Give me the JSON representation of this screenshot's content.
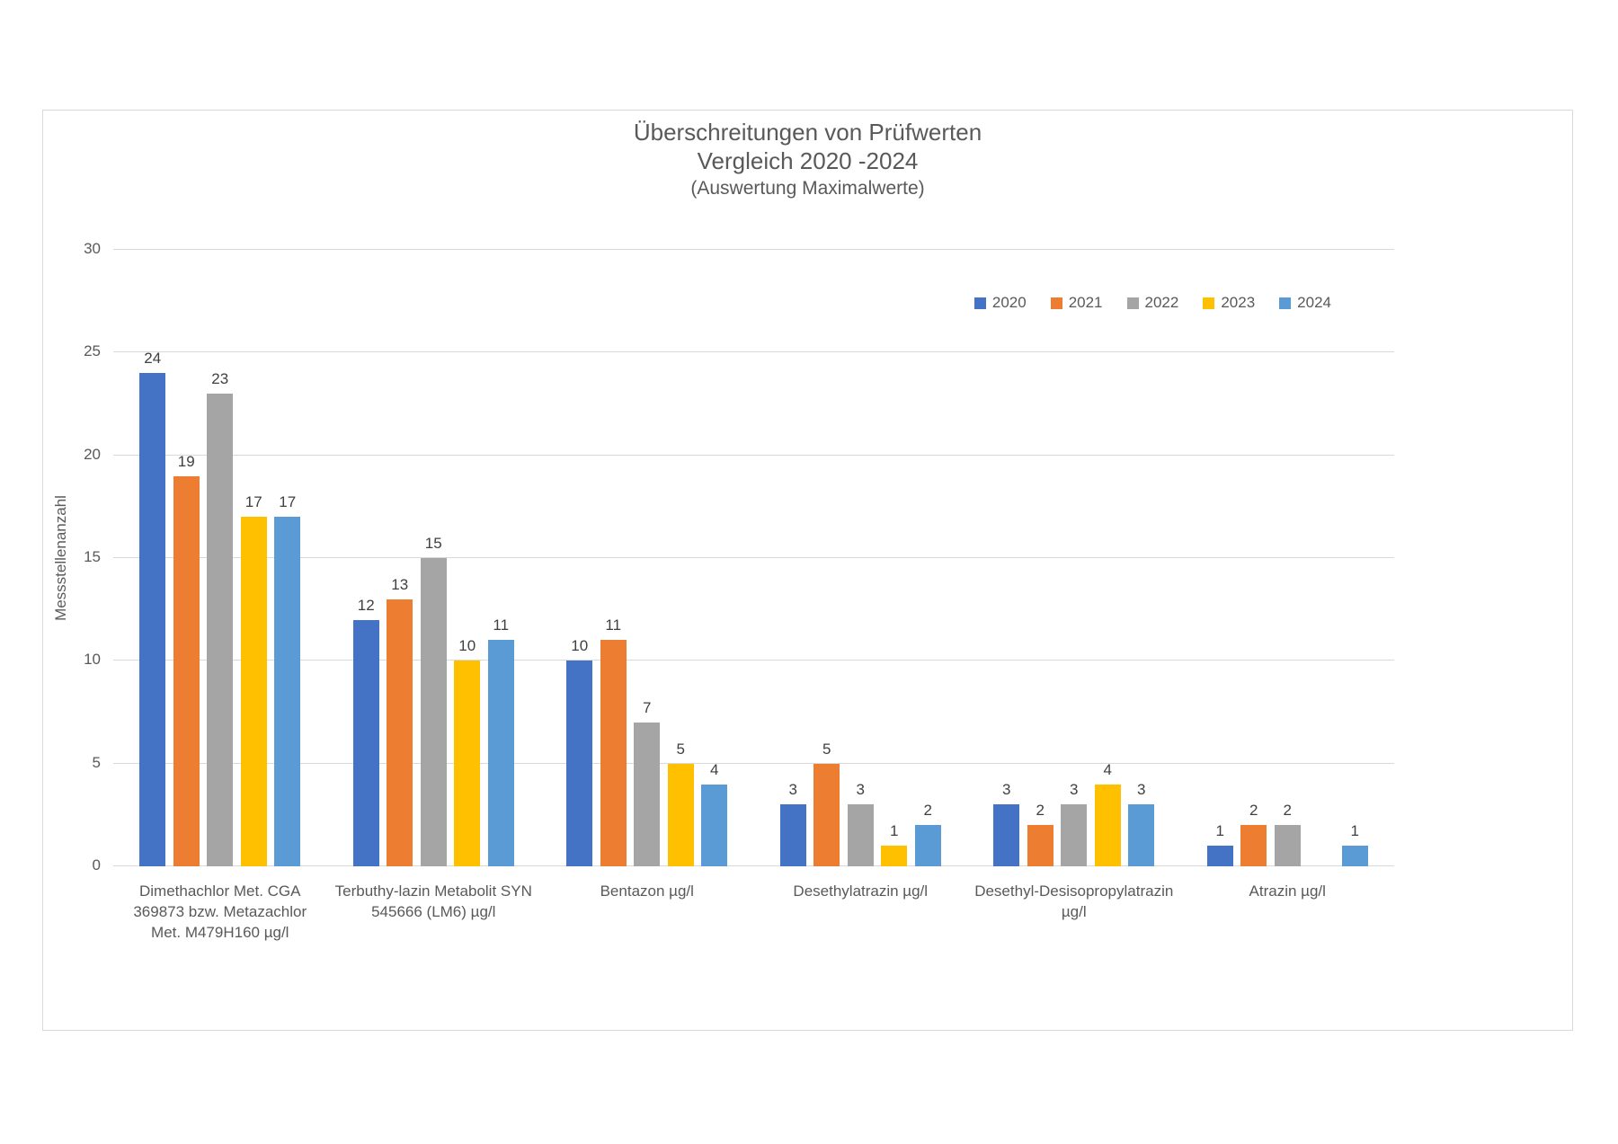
{
  "title": {
    "line1": "Überschreitungen von Prüfwerten",
    "line2": "Vergleich 2020 -2024",
    "line3": "(Auswertung Maximalwerte)"
  },
  "chart_data": {
    "type": "bar",
    "title": "Überschreitungen von Prüfwerten Vergleich 2020 -2024 (Auswertung Maximalwerte)",
    "xlabel": "",
    "ylabel": "Messstellenanzahl",
    "ylim": [
      0,
      30
    ],
    "yticks": [
      0,
      5,
      10,
      15,
      20,
      25,
      30
    ],
    "grid": true,
    "data_labels": true,
    "legend_position": "top-right",
    "categories": [
      "Dimethachlor Met. CGA 369873 bzw. Metazachlor Met. M479H160 µg/l",
      "Terbuthy-lazin Metabolit SYN 545666 (LM6) µg/l",
      "Bentazon µg/l",
      "Desethylatrazin µg/l",
      "Desethyl-Desisopropylatrazin µg/l",
      "Atrazin µg/l"
    ],
    "series": [
      {
        "name": "2020",
        "color": "#4472C4",
        "values": [
          24,
          12,
          10,
          3,
          3,
          1
        ]
      },
      {
        "name": "2021",
        "color": "#ED7D31",
        "values": [
          19,
          13,
          11,
          5,
          2,
          2
        ]
      },
      {
        "name": "2022",
        "color": "#A5A5A5",
        "values": [
          23,
          15,
          7,
          3,
          3,
          2
        ]
      },
      {
        "name": "2023",
        "color": "#FFC000",
        "values": [
          17,
          10,
          5,
          1,
          4,
          0
        ]
      },
      {
        "name": "2024",
        "color": "#5B9BD5",
        "values": [
          17,
          11,
          4,
          2,
          3,
          1
        ]
      }
    ],
    "colors": {
      "gridline": "#D9D9D9",
      "axis_text": "#595959",
      "data_label": "#404040"
    }
  }
}
